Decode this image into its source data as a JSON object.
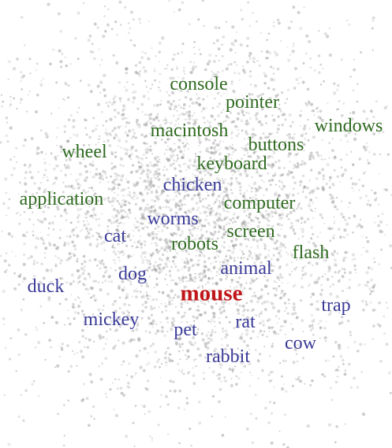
{
  "colors": {
    "center": "#c0161a",
    "technology": "#2e6a1f",
    "animal": "#3a3a98",
    "background_points": "#8a8a8a"
  },
  "words": {
    "console": {
      "text": "console",
      "group": "technology"
    },
    "pointer": {
      "text": "pointer",
      "group": "technology"
    },
    "macintosh": {
      "text": "macintosh",
      "group": "technology"
    },
    "windows": {
      "text": "windows",
      "group": "technology"
    },
    "buttons": {
      "text": "buttons",
      "group": "technology"
    },
    "wheel": {
      "text": "wheel",
      "group": "technology"
    },
    "keyboard": {
      "text": "keyboard",
      "group": "technology"
    },
    "chicken": {
      "text": "chicken",
      "group": "animal"
    },
    "application": {
      "text": "application",
      "group": "technology"
    },
    "computer": {
      "text": "computer",
      "group": "technology"
    },
    "worms": {
      "text": "worms",
      "group": "animal"
    },
    "cat": {
      "text": "cat",
      "group": "animal"
    },
    "screen": {
      "text": "screen",
      "group": "technology"
    },
    "robots": {
      "text": "robots",
      "group": "technology"
    },
    "flash": {
      "text": "flash",
      "group": "technology"
    },
    "animal": {
      "text": "animal",
      "group": "animal"
    },
    "dog": {
      "text": "dog",
      "group": "animal"
    },
    "duck": {
      "text": "duck",
      "group": "animal"
    },
    "mouse": {
      "text": "mouse",
      "group": "center"
    },
    "trap": {
      "text": "trap",
      "group": "animal"
    },
    "mickey": {
      "text": "mickey",
      "group": "animal"
    },
    "rat": {
      "text": "rat",
      "group": "animal"
    },
    "pet": {
      "text": "pet",
      "group": "animal"
    },
    "cow": {
      "text": "cow",
      "group": "animal"
    },
    "rabbit": {
      "text": "rabbit",
      "group": "animal"
    }
  }
}
